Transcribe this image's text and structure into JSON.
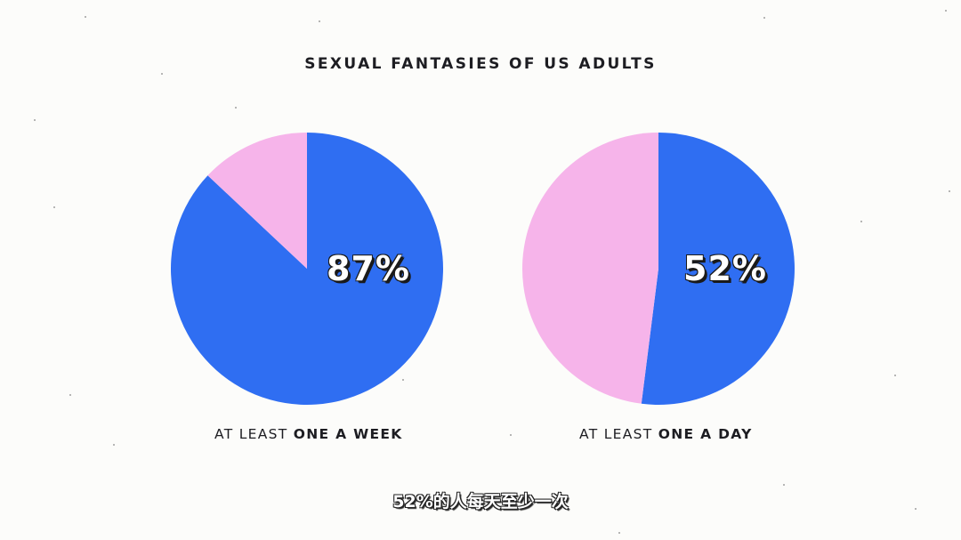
{
  "chart_data": [
    {
      "type": "pie",
      "title": "SEXUAL FANTASIES OF US ADULTS",
      "label": "87%",
      "caption_prefix": "AT LEAST",
      "caption_bold": "ONE A WEEK",
      "slices": [
        {
          "name": "",
          "value": 87,
          "color": "#2f6ef2"
        },
        {
          "name": "",
          "value": 13,
          "color": "#f6b4ea"
        }
      ]
    },
    {
      "type": "pie",
      "label": "52%",
      "caption_prefix": "AT LEAST",
      "caption_bold": "ONE A DAY",
      "slices": [
        {
          "name": "",
          "value": 52,
          "color": "#2f6ef2"
        },
        {
          "name": "",
          "value": 48,
          "color": "#f6b4ea"
        }
      ]
    }
  ],
  "subtitle": "52%的人每天至少一次",
  "colors": {
    "blue": "#2f6ef2",
    "pink": "#f6b4ea",
    "ink": "#1d1d22"
  }
}
